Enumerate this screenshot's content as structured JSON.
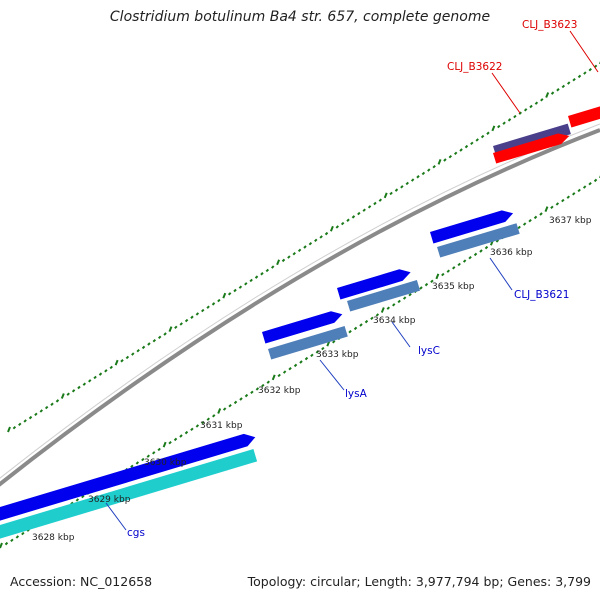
{
  "title": "Clostridium botulinum Ba4 str. 657, complete genome",
  "footer": {
    "accession": "Accession: NC_012658",
    "summary": "Topology: circular; Length: 3,977,794 bp; Genes: 3,799"
  },
  "ticks": [
    "3628 kbp",
    "3629 kbp",
    "3630 kbp",
    "3631 kbp",
    "3632 kbp",
    "3633 kbp",
    "3634 kbp",
    "3635 kbp",
    "3636 kbp",
    "3637 kbp"
  ],
  "genes": [
    {
      "label": "cgs",
      "color": "#0000cc"
    },
    {
      "label": "lysA",
      "color": "#0000cc"
    },
    {
      "label": "lysC",
      "color": "#0000cc"
    },
    {
      "label": "CLJ_B3621",
      "color": "#0000cc"
    },
    {
      "label": "CLJ_B3622",
      "color": "#dd0000"
    },
    {
      "label": "CLJ_B3623",
      "color": "#dd0000"
    }
  ],
  "colors": {
    "backbone": "#8a8a8a",
    "cds": "#0000ee",
    "gene": "#4f7fb8",
    "rna_gene": "#1fcdcd",
    "red_feature": "#ff0000",
    "purple_feature": "#4a3f8a",
    "tick": "#1a7a1a"
  }
}
